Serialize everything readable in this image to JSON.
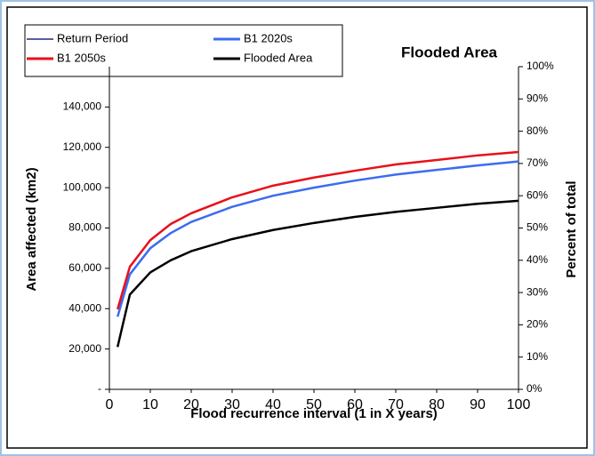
{
  "chart_data": {
    "type": "line",
    "title": "Flooded Area",
    "xlabel": "Flood recurrence interval (1 in X years)",
    "ylabel": "Area affected (km2)",
    "y2label": "Percent of total",
    "x": [
      2,
      5,
      10,
      15,
      20,
      30,
      40,
      50,
      60,
      70,
      80,
      90,
      100
    ],
    "series": [
      {
        "name": "Return Period",
        "color": "#1f2a80",
        "values": [
          null,
          null,
          null,
          null,
          null,
          null,
          null,
          null,
          null,
          null,
          null,
          null,
          null
        ]
      },
      {
        "name": "B1 2020s",
        "color": "#3b6cf0",
        "values": [
          36000,
          57000,
          70000,
          77500,
          83000,
          90500,
          96000,
          100000,
          103500,
          106500,
          108800,
          111000,
          113000
        ]
      },
      {
        "name": "B1 2050s",
        "color": "#e8101a",
        "values": [
          39700,
          60800,
          74000,
          82000,
          87300,
          95200,
          101000,
          105000,
          108400,
          111500,
          113700,
          116000,
          117700
        ]
      },
      {
        "name": "Flooded Area",
        "color": "#000000",
        "values": [
          21000,
          47000,
          58000,
          64000,
          68500,
          74500,
          79000,
          82500,
          85500,
          88000,
          90000,
          92000,
          93500
        ]
      }
    ],
    "xlim": [
      0,
      100
    ],
    "xticks": [
      0,
      10,
      20,
      30,
      40,
      50,
      60,
      70,
      80,
      90,
      100
    ],
    "ylim": [
      0,
      160000
    ],
    "yticks": [
      {
        "value": 0,
        "label": "-"
      },
      {
        "value": 20000,
        "label": "20,000"
      },
      {
        "value": 40000,
        "label": "40,000"
      },
      {
        "value": 60000,
        "label": "60,000"
      },
      {
        "value": 80000,
        "label": "80,000"
      },
      {
        "value": 100000,
        "label": "100,000"
      },
      {
        "value": 120000,
        "label": "120,000"
      },
      {
        "value": 140000,
        "label": "140,000"
      }
    ],
    "y2lim": [
      0,
      100
    ],
    "y2ticks": [
      {
        "value": 0,
        "label": "0%"
      },
      {
        "value": 10,
        "label": "10%"
      },
      {
        "value": 20,
        "label": "20%"
      },
      {
        "value": 30,
        "label": "30%"
      },
      {
        "value": 40,
        "label": "40%"
      },
      {
        "value": 50,
        "label": "50%"
      },
      {
        "value": 60,
        "label": "60%"
      },
      {
        "value": 70,
        "label": "70%"
      },
      {
        "value": 80,
        "label": "80%"
      },
      {
        "value": 90,
        "label": "90%"
      },
      {
        "value": 100,
        "label": "100%"
      }
    ],
    "grid": false
  }
}
